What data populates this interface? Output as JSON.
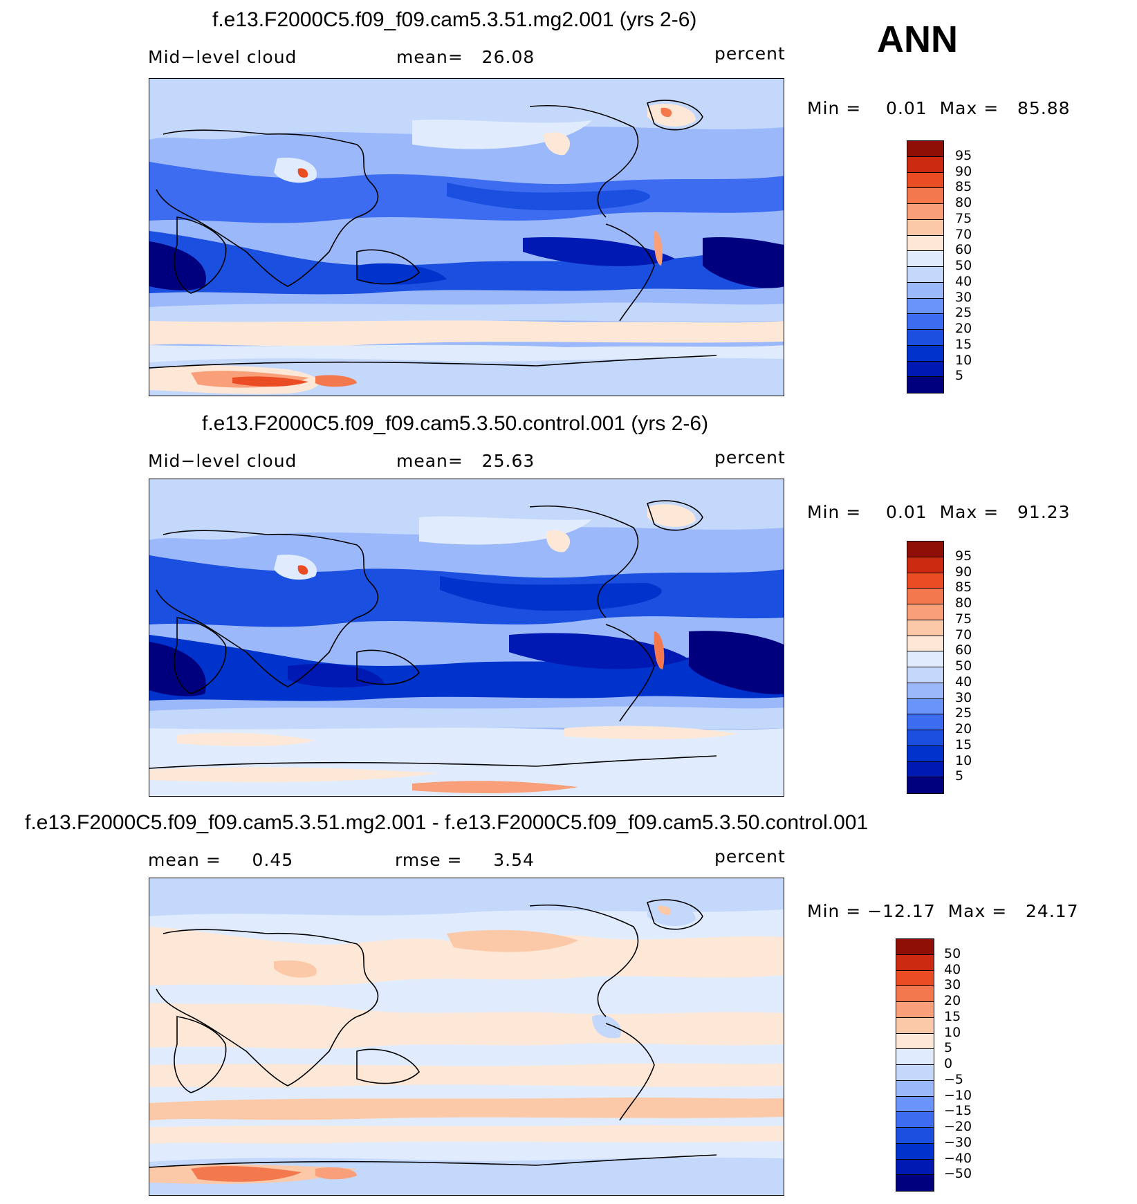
{
  "season": "ANN",
  "colors": {
    "abs_scale": [
      "#00007f",
      "#0019b2",
      "#0033cc",
      "#1a4fe0",
      "#3d6cf0",
      "#6a94f7",
      "#9ab8fa",
      "#c4d8fc",
      "#e0ecfd",
      "#fde8d7",
      "#fbc9a8",
      "#f9a07a",
      "#f4784e",
      "#ea4d24",
      "#cc2a10",
      "#8f0e05"
    ],
    "diff_scale": [
      "#00007f",
      "#0019b2",
      "#0033cc",
      "#1a4fe0",
      "#3d6cf0",
      "#6a94f7",
      "#9ab8fa",
      "#c4d8fc",
      "#e0ecfd",
      "#fde8d7",
      "#fbc9a8",
      "#f9a07a",
      "#f4784e",
      "#ea4d24",
      "#cc2a10",
      "#8f0e05"
    ]
  },
  "panels": [
    {
      "title": "f.e13.F2000C5.f09_f09.cam5.3.51.mg2.001 (yrs 2-6)",
      "left_label": "Mid−level cloud",
      "mid_label": "mean=   26.08",
      "right_label": "percent",
      "minmax": "Min =    0.01  Max =   85.88",
      "levels": [
        "95",
        "90",
        "85",
        "80",
        "75",
        "70",
        "60",
        "50",
        "40",
        "30",
        "25",
        "20",
        "15",
        "10",
        "5"
      ]
    },
    {
      "title": "f.e13.F2000C5.f09_f09.cam5.3.50.control.001 (yrs 2-6)",
      "left_label": "Mid−level cloud",
      "mid_label": "mean=   25.63",
      "right_label": "percent",
      "minmax": "Min =    0.01  Max =   91.23",
      "levels": [
        "95",
        "90",
        "85",
        "80",
        "75",
        "70",
        "60",
        "50",
        "40",
        "30",
        "25",
        "20",
        "15",
        "10",
        "5"
      ]
    },
    {
      "title": "f.e13.F2000C5.f09_f09.cam5.3.51.mg2.001 - f.e13.F2000C5.f09_f09.cam5.3.50.control.001",
      "left_label": "mean =     0.45",
      "mid_label": "rmse =     3.54",
      "right_label": "percent",
      "minmax": "Min = −12.17  Max =   24.17",
      "levels": [
        "50",
        "40",
        "30",
        "20",
        "15",
        "10",
        "5",
        "0",
        "−5",
        "−10",
        "−15",
        "−20",
        "−30",
        "−40",
        "−50"
      ]
    }
  ]
}
